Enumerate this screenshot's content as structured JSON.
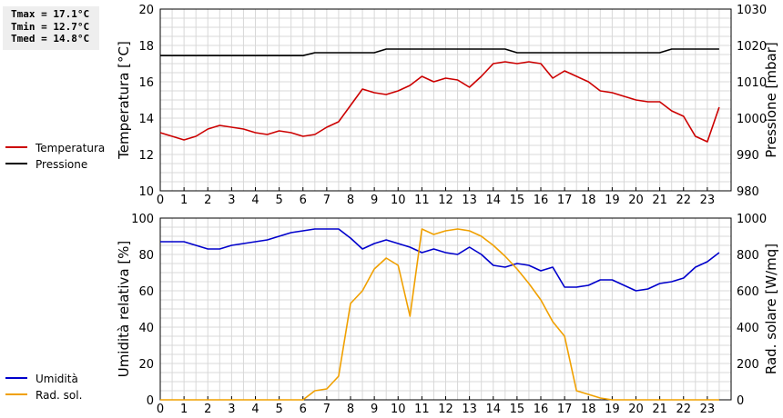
{
  "stats": {
    "tmax": "Tmax = 17.1°C",
    "tmin": "Tmin = 12.7°C",
    "tmed": "Tmed = 14.8°C"
  },
  "chart_data": [
    {
      "type": "line",
      "ylabel": "Temperatura [°C]",
      "y2label": "Pressione [mbar]",
      "xlim": [
        0,
        24
      ],
      "ylim": [
        10,
        20
      ],
      "y2lim": [
        980,
        1030
      ],
      "xticks": [
        0,
        1,
        2,
        3,
        4,
        5,
        6,
        7,
        8,
        9,
        10,
        11,
        12,
        13,
        14,
        15,
        16,
        17,
        18,
        19,
        20,
        21,
        22,
        23
      ],
      "yticks": [
        10,
        12,
        14,
        16,
        18,
        20
      ],
      "y2ticks": [
        980,
        990,
        1000,
        1010,
        1020,
        1030
      ],
      "grid": true,
      "legend_position": "left",
      "series": [
        {
          "name": "Temperatura",
          "axis": "left",
          "color": "#cc0000",
          "x": [
            0,
            0.5,
            1,
            1.5,
            2,
            2.5,
            3,
            3.5,
            4,
            4.5,
            5,
            5.5,
            6,
            6.5,
            7,
            7.5,
            8,
            8.5,
            9,
            9.5,
            10,
            10.5,
            11,
            11.5,
            12,
            12.5,
            13,
            13.5,
            14,
            14.5,
            15,
            15.5,
            16,
            16.5,
            17,
            17.5,
            18,
            18.5,
            19,
            19.5,
            20,
            20.5,
            21,
            21.5,
            22,
            22.5,
            23,
            23.5
          ],
          "y": [
            13.2,
            13.0,
            12.8,
            13.0,
            13.4,
            13.6,
            13.5,
            13.4,
            13.2,
            13.1,
            13.3,
            13.2,
            13.0,
            13.1,
            13.5,
            13.8,
            14.7,
            15.6,
            15.4,
            15.3,
            15.5,
            15.8,
            16.3,
            16.0,
            16.2,
            16.1,
            15.7,
            16.3,
            17.0,
            17.1,
            17.0,
            17.1,
            17.0,
            16.2,
            16.6,
            16.3,
            16.0,
            15.5,
            15.4,
            15.2,
            15.0,
            14.9,
            14.9,
            14.4,
            14.1,
            13.0,
            12.7,
            14.6
          ]
        },
        {
          "name": "Pressione",
          "axis": "right",
          "color": "#000000",
          "x": [
            0,
            1,
            2,
            3,
            4,
            5,
            6,
            6.5,
            7,
            8,
            9,
            9.5,
            10,
            11,
            12,
            13,
            14,
            14.5,
            15,
            15.5,
            16,
            17,
            18,
            19,
            20,
            21,
            21.5,
            22,
            23,
            23.5
          ],
          "y": [
            1017.2,
            1017.2,
            1017.2,
            1017.2,
            1017.2,
            1017.2,
            1017.2,
            1018.0,
            1018.0,
            1018.0,
            1018.0,
            1019.0,
            1019.0,
            1019.0,
            1019.0,
            1019.0,
            1019.0,
            1019.0,
            1018.0,
            1018.0,
            1018.0,
            1018.0,
            1018.0,
            1018.0,
            1018.0,
            1018.0,
            1019.0,
            1019.0,
            1019.0,
            1019.0
          ]
        }
      ]
    },
    {
      "type": "line",
      "ylabel": "Umidità relativa [%]",
      "y2label": "Rad. solare [W/mq]",
      "xlim": [
        0,
        24
      ],
      "ylim": [
        0,
        100
      ],
      "y2lim": [
        0,
        1000
      ],
      "xticks": [
        0,
        1,
        2,
        3,
        4,
        5,
        6,
        7,
        8,
        9,
        10,
        11,
        12,
        13,
        14,
        15,
        16,
        17,
        18,
        19,
        20,
        21,
        22,
        23
      ],
      "yticks": [
        0,
        20,
        40,
        60,
        80,
        100
      ],
      "y2ticks": [
        0,
        200,
        400,
        600,
        800,
        1000
      ],
      "grid": true,
      "legend_position": "left",
      "series": [
        {
          "name": "Umidità",
          "axis": "left",
          "color": "#0000cc",
          "x": [
            0,
            0.5,
            1,
            1.5,
            2,
            2.5,
            3,
            3.5,
            4,
            4.5,
            5,
            5.5,
            6,
            6.5,
            7,
            7.5,
            8,
            8.5,
            9,
            9.5,
            10,
            10.5,
            11,
            11.5,
            12,
            12.5,
            13,
            13.5,
            14,
            14.5,
            15,
            15.5,
            16,
            16.5,
            17,
            17.5,
            18,
            18.5,
            19,
            19.5,
            20,
            20.5,
            21,
            21.5,
            22,
            22.5,
            23,
            23.5
          ],
          "y": [
            87,
            87,
            87,
            85,
            83,
            83,
            85,
            86,
            87,
            88,
            90,
            92,
            93,
            94,
            94,
            94,
            89,
            83,
            86,
            88,
            86,
            84,
            81,
            83,
            81,
            80,
            84,
            80,
            74,
            73,
            75,
            74,
            71,
            73,
            62,
            62,
            63,
            66,
            66,
            63,
            60,
            61,
            64,
            65,
            67,
            73,
            76,
            81
          ]
        },
        {
          "name": "Rad. sol.",
          "axis": "right",
          "color": "#f0a000",
          "x": [
            0,
            0.5,
            1,
            1.5,
            2,
            2.5,
            3,
            3.5,
            4,
            4.5,
            5,
            5.5,
            6,
            6.5,
            7,
            7.5,
            8,
            8.5,
            9,
            9.5,
            10,
            10.5,
            11,
            11.5,
            12,
            12.5,
            13,
            13.5,
            14,
            14.5,
            15,
            15.5,
            16,
            16.5,
            17,
            17.5,
            18,
            18.5,
            19,
            19.5,
            20,
            20.5,
            21,
            21.5,
            22,
            22.5,
            23,
            23.5
          ],
          "y": [
            0,
            0,
            0,
            0,
            0,
            0,
            0,
            0,
            0,
            0,
            0,
            0,
            0,
            50,
            60,
            130,
            530,
            600,
            720,
            780,
            740,
            460,
            940,
            910,
            930,
            940,
            930,
            900,
            850,
            790,
            720,
            640,
            550,
            430,
            350,
            50,
            30,
            10,
            0,
            0,
            0,
            0,
            0,
            0,
            0,
            0,
            0,
            0
          ]
        }
      ]
    }
  ]
}
